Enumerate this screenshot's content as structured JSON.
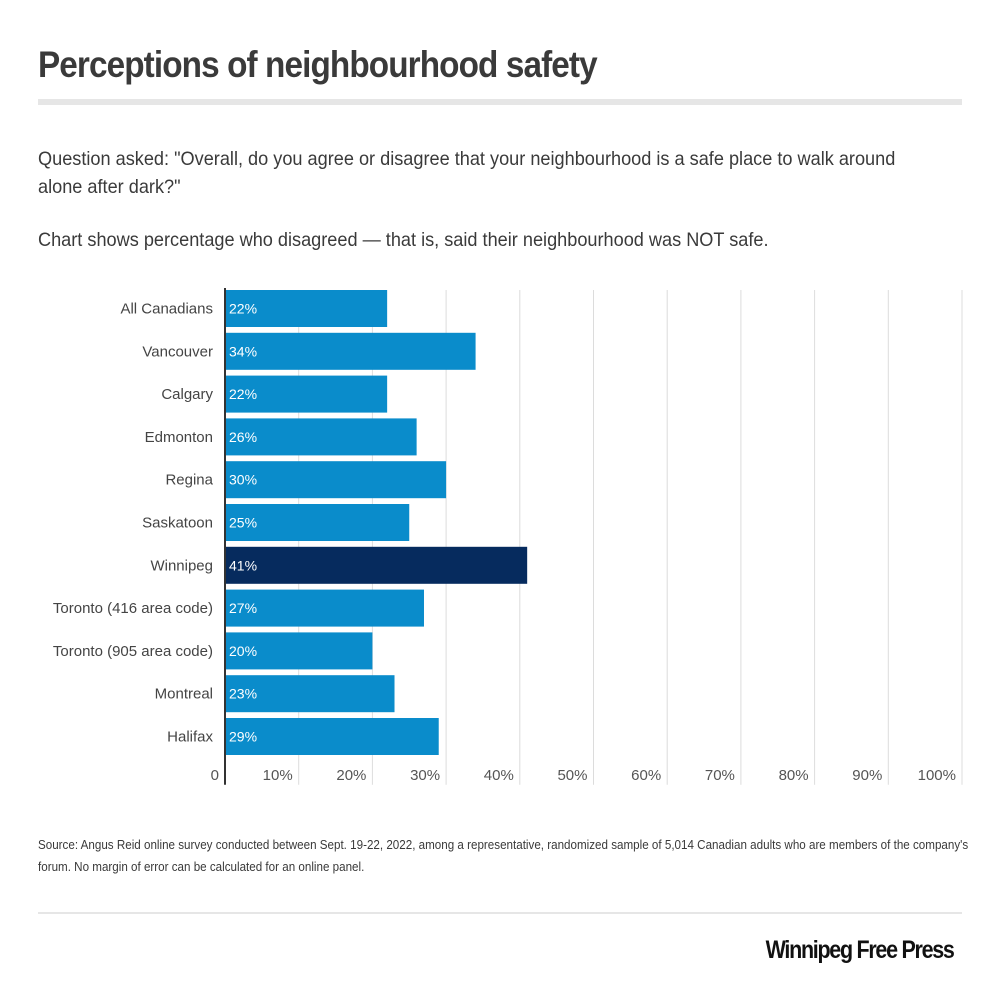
{
  "header": {
    "title": "Perceptions of neighbourhood safety",
    "question": "Question asked: \"Overall, do you agree or disagree that your neighbourhood is a safe place to walk around alone after dark?\"",
    "note": "Chart shows percentage who disagreed — that is, said their neighbourhood was NOT safe."
  },
  "colors": {
    "bar_default": "#0a8ccb",
    "bar_highlight": "#062b5e",
    "gridline": "#dcdcdc",
    "axis": "#333333"
  },
  "chart_data": {
    "type": "bar",
    "orientation": "horizontal",
    "title": "Perceptions of neighbourhood safety",
    "xlabel": "",
    "ylabel": "",
    "categories": [
      "All Canadians",
      "Vancouver",
      "Calgary",
      "Edmonton",
      "Regina",
      "Saskatoon",
      "Winnipeg",
      "Toronto (416 area code)",
      "Toronto (905 area code)",
      "Montreal",
      "Halifax"
    ],
    "values": [
      22,
      34,
      22,
      26,
      30,
      25,
      41,
      27,
      20,
      23,
      29
    ],
    "value_labels": [
      "22%",
      "34%",
      "22%",
      "26%",
      "30%",
      "25%",
      "41%",
      "27%",
      "20%",
      "23%",
      "29%"
    ],
    "highlight": "Winnipeg",
    "xlim": [
      0,
      100
    ],
    "x_ticks": [
      0,
      10,
      20,
      30,
      40,
      50,
      60,
      70,
      80,
      90,
      100
    ],
    "x_tick_labels": [
      "0",
      "10%",
      "20%",
      "30%",
      "40%",
      "50%",
      "60%",
      "70%",
      "80%",
      "90%",
      "100%"
    ],
    "grid": "vertical",
    "legend": "none"
  },
  "footer": {
    "source": "Source: Angus Reid online survey conducted between Sept. 19-22, 2022, among a representative, randomized sample of 5,014 Canadian adults who are members of the company's forum.  No margin of error can be calculated for an online panel.",
    "logo": "Winnipeg Free Press"
  }
}
